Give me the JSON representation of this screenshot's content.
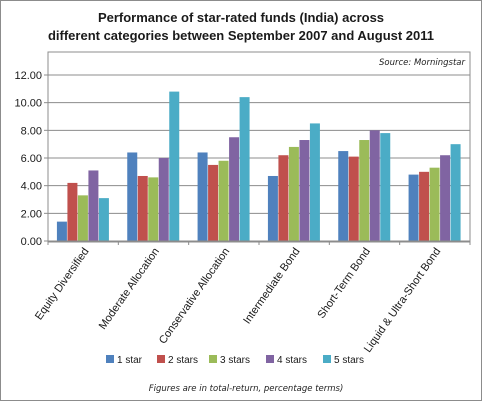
{
  "chart_data": {
    "type": "bar",
    "title_line1": "Performance of star-rated funds (India) across",
    "title_line2": "different categories between September 2007 and August 2011",
    "source": "Source: Morningstar",
    "note": "Figures are in total-return, percentage terms)",
    "ylim": [
      0,
      12
    ],
    "yticks": [
      "0.00",
      "2.00",
      "4.00",
      "6.00",
      "8.00",
      "10.00",
      "12.00"
    ],
    "grid": true,
    "legend_position": "bottom",
    "categories": [
      "Equity Diversified",
      "Moderate Allocation",
      "Conservative Allocation",
      "Intermediate Bond",
      "Short-Term Bond",
      "Liquid & Ultra-Short Bond"
    ],
    "series": [
      {
        "name": "1 star",
        "color": "#4F81BD",
        "values": [
          1.4,
          6.4,
          6.4,
          4.7,
          6.5,
          4.8
        ]
      },
      {
        "name": "2 stars",
        "color": "#C0504D",
        "values": [
          4.2,
          4.7,
          5.5,
          6.2,
          6.1,
          5.0
        ]
      },
      {
        "name": "3 stars",
        "color": "#9BBB59",
        "values": [
          3.3,
          4.6,
          5.8,
          6.8,
          7.3,
          5.3
        ]
      },
      {
        "name": "4 stars",
        "color": "#8064A2",
        "values": [
          5.1,
          6.0,
          7.5,
          7.3,
          8.0,
          6.2
        ]
      },
      {
        "name": "5 stars",
        "color": "#4BACC6",
        "values": [
          3.1,
          10.8,
          10.4,
          8.5,
          7.8,
          7.0
        ]
      }
    ]
  }
}
